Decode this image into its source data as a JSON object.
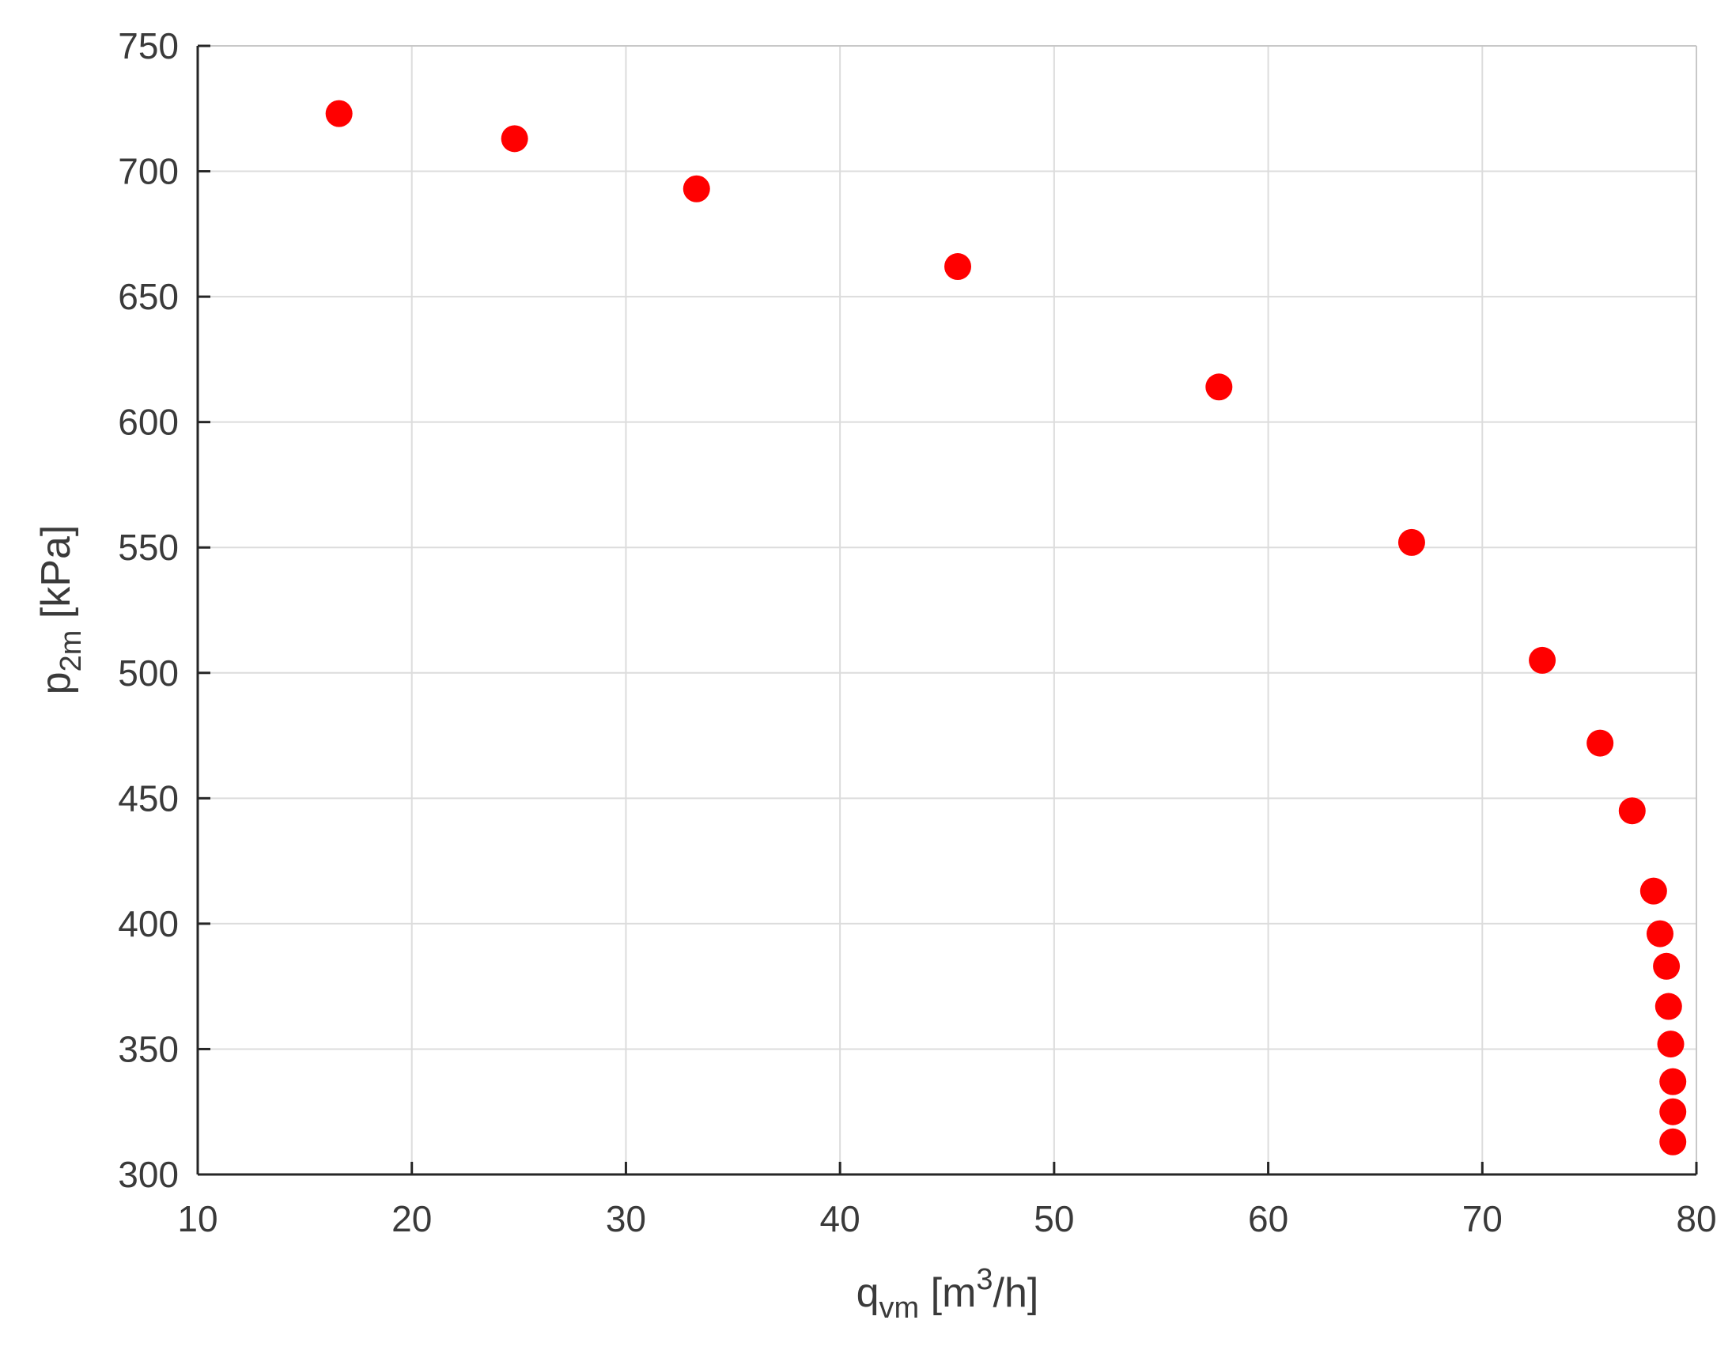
{
  "chart_data": {
    "type": "scatter",
    "xlabel": {
      "main": "q",
      "sub": "vm",
      "unit_pre": " [m",
      "sup": "3",
      "unit_post": "/h]"
    },
    "ylabel": {
      "main": "p",
      "sub": "2m",
      "unit": " [kPa]"
    },
    "xlim": [
      10,
      80
    ],
    "ylim": [
      300,
      750
    ],
    "xticks": [
      10,
      20,
      30,
      40,
      50,
      60,
      70,
      80
    ],
    "yticks": [
      300,
      350,
      400,
      450,
      500,
      550,
      600,
      650,
      700,
      750
    ],
    "grid": true,
    "marker_color": "#ff0000",
    "series": [
      {
        "points": [
          {
            "x": 16.6,
            "y": 723
          },
          {
            "x": 24.8,
            "y": 713
          },
          {
            "x": 33.3,
            "y": 693
          },
          {
            "x": 45.5,
            "y": 662
          },
          {
            "x": 57.7,
            "y": 614
          },
          {
            "x": 66.7,
            "y": 552
          },
          {
            "x": 72.8,
            "y": 505
          },
          {
            "x": 75.5,
            "y": 472
          },
          {
            "x": 77.0,
            "y": 445
          },
          {
            "x": 78.0,
            "y": 413
          },
          {
            "x": 78.3,
            "y": 396
          },
          {
            "x": 78.6,
            "y": 383
          },
          {
            "x": 78.7,
            "y": 367
          },
          {
            "x": 78.8,
            "y": 352
          },
          {
            "x": 78.9,
            "y": 337
          },
          {
            "x": 78.9,
            "y": 325
          },
          {
            "x": 78.9,
            "y": 313
          }
        ]
      }
    ]
  }
}
